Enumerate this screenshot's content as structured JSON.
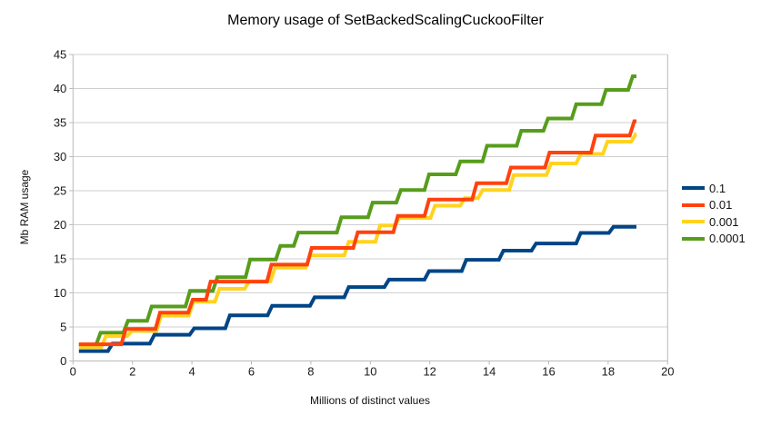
{
  "chart_data": {
    "type": "line",
    "title": "Memory usage of SetBackedScalingCuckooFilter",
    "xlabel": "Millions of distinct values",
    "ylabel": "Mb RAM usage",
    "xlim": [
      0,
      20
    ],
    "ylim": [
      0,
      45
    ],
    "x_ticks": [
      0,
      2,
      4,
      6,
      8,
      10,
      12,
      14,
      16,
      18,
      20
    ],
    "y_ticks": [
      0,
      5,
      10,
      15,
      20,
      25,
      30,
      35,
      40,
      45
    ],
    "grid": "horizontal-only",
    "legend_position": "right",
    "line_style": "stepped",
    "x_start": 0.2,
    "x_end": 18.95,
    "series": [
      {
        "name": "0.1",
        "color": "#004586",
        "z": 1,
        "steps": [
          [
            0.2,
            1.45
          ],
          [
            1.25,
            2.55
          ],
          [
            2.66,
            3.85
          ],
          [
            4.0,
            4.8
          ],
          [
            5.2,
            6.7
          ],
          [
            6.62,
            8.1
          ],
          [
            8.05,
            9.35
          ],
          [
            9.2,
            10.85
          ],
          [
            10.55,
            11.95
          ],
          [
            11.9,
            13.2
          ],
          [
            13.15,
            14.85
          ],
          [
            14.4,
            16.2
          ],
          [
            15.5,
            17.25
          ],
          [
            17.0,
            18.8
          ],
          [
            18.1,
            19.7
          ]
        ]
      },
      {
        "name": "0.01",
        "color": "#FF420E",
        "z": 4,
        "steps": [
          [
            0.2,
            2.45
          ],
          [
            1.7,
            4.7
          ],
          [
            2.85,
            7.1
          ],
          [
            3.95,
            9.0
          ],
          [
            4.55,
            11.65
          ],
          [
            6.6,
            14.15
          ],
          [
            7.95,
            16.6
          ],
          [
            9.5,
            18.9
          ],
          [
            10.85,
            21.3
          ],
          [
            11.9,
            23.7
          ],
          [
            13.5,
            26.1
          ],
          [
            14.65,
            28.4
          ],
          [
            15.95,
            30.6
          ],
          [
            17.5,
            33.1
          ],
          [
            18.8,
            35.2
          ]
        ]
      },
      {
        "name": "0.001",
        "color": "#FFD320",
        "z": 3,
        "steps": [
          [
            0.2,
            2.05
          ],
          [
            1.03,
            3.65
          ],
          [
            1.9,
            4.4
          ],
          [
            2.88,
            6.65
          ],
          [
            3.97,
            8.7
          ],
          [
            4.85,
            10.6
          ],
          [
            5.85,
            11.7
          ],
          [
            6.72,
            13.7
          ],
          [
            7.9,
            15.5
          ],
          [
            9.2,
            17.5
          ],
          [
            10.25,
            19.9
          ],
          [
            10.9,
            21.0
          ],
          [
            12.1,
            22.8
          ],
          [
            13.1,
            23.9
          ],
          [
            13.7,
            25.1
          ],
          [
            14.75,
            27.3
          ],
          [
            16.0,
            29.0
          ],
          [
            17.0,
            30.4
          ],
          [
            17.9,
            32.2
          ],
          [
            18.85,
            33.3
          ]
        ]
      },
      {
        "name": "0.0001",
        "color": "#579D1C",
        "z": 2,
        "steps": [
          [
            0.2,
            2.35
          ],
          [
            0.85,
            4.15
          ],
          [
            1.77,
            5.9
          ],
          [
            2.57,
            8.0
          ],
          [
            3.86,
            10.3
          ],
          [
            4.78,
            12.3
          ],
          [
            5.88,
            14.9
          ],
          [
            6.9,
            16.9
          ],
          [
            7.5,
            18.85
          ],
          [
            8.95,
            21.1
          ],
          [
            10.0,
            23.25
          ],
          [
            10.95,
            25.1
          ],
          [
            11.9,
            27.4
          ],
          [
            12.95,
            29.3
          ],
          [
            13.85,
            31.6
          ],
          [
            15.0,
            33.8
          ],
          [
            15.9,
            35.6
          ],
          [
            16.85,
            37.7
          ],
          [
            17.85,
            39.8
          ],
          [
            18.75,
            41.8
          ]
        ]
      }
    ],
    "colors": {
      "grid": "#cfcfcf",
      "axis": "#b9b9b9",
      "text": "#1a1a1a"
    }
  }
}
